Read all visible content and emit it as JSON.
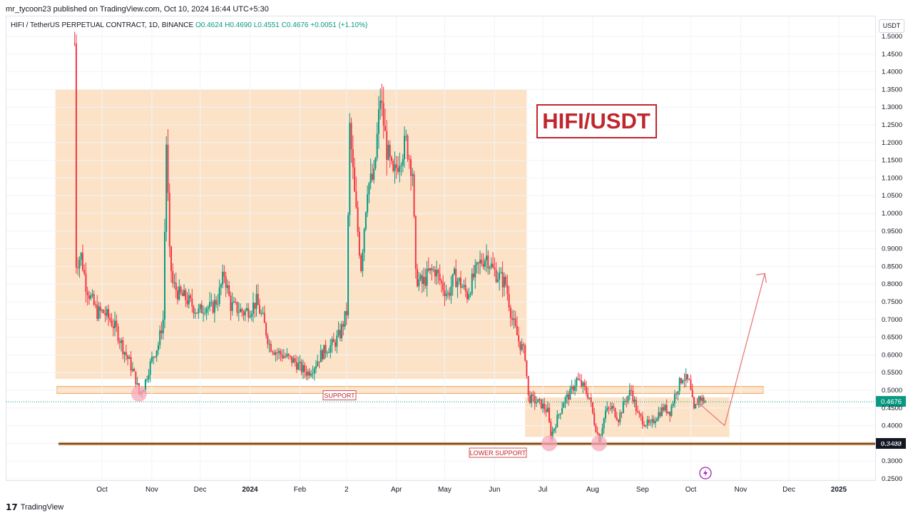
{
  "header": {
    "published": "mr_tycoon23 published on TradingView.com, Oct 10, 2024 16:44 UTC+5:30"
  },
  "symbol": {
    "name": "HIFI / TetherUS PERPETUAL CONTRACT, 1D, BINANCE",
    "open": "O0.4624",
    "high": "H0.4690",
    "low": "L0.4551",
    "close": "C0.4676",
    "change": "+0.0051 (+1.10%)"
  },
  "currency_button": "USDT",
  "brand": {
    "logo": "17",
    "name": "TradingView"
  },
  "colors": {
    "up": "#089981",
    "down": "#f23645",
    "zone_fill": "#fbd9b4",
    "title_red": "#c0272d",
    "arrow": "#e87b7b",
    "circle": "#f7a8b8"
  },
  "annotations": {
    "title_box": "HIFI/USDT",
    "support_label": "SUPPORT",
    "lower_support_label": "LOWER SUPPORT",
    "current_price_tag": "0.4676",
    "lower_support_tag": "0.3488",
    "lightning_icon": "lightning-icon"
  },
  "chart_data": {
    "type": "candlestick",
    "title": "HIFI/USDT",
    "y_ticks": [
      "1.5000",
      "1.4500",
      "1.4000",
      "1.3500",
      "1.3000",
      "1.2500",
      "1.2000",
      "1.1500",
      "1.1000",
      "1.0500",
      "1.0000",
      "0.9500",
      "0.9000",
      "0.8500",
      "0.8000",
      "0.7500",
      "0.7000",
      "0.6500",
      "0.6000",
      "0.5500",
      "0.5000",
      "0.4500",
      "0.4000",
      "0.3500",
      "0.3000",
      "0.2500"
    ],
    "x_ticks": [
      "Oct",
      "Nov",
      "Dec",
      "2024",
      "Feb",
      "2",
      "Apr",
      "May",
      "Jun",
      "Jul",
      "Aug",
      "Sep",
      "Oct",
      "Nov",
      "Dec",
      "2025"
    ],
    "x_tick_dates": [
      "2023-10-01",
      "2023-11-01",
      "2023-12-01",
      "2024-01-01",
      "2024-02-01",
      "2024-03-01",
      "2024-04-01",
      "2024-05-01",
      "2024-06-01",
      "2024-07-01",
      "2024-08-01",
      "2024-09-01",
      "2024-10-01",
      "2024-11-01",
      "2024-12-01",
      "2025-01-01"
    ],
    "ylim": [
      0.24,
      1.52
    ],
    "current_price": 0.4676,
    "lower_support_price": 0.3488,
    "close_path": [
      [
        "2023-09-14",
        1.48
      ],
      [
        "2023-09-15",
        0.86
      ],
      [
        "2023-09-18",
        0.88
      ],
      [
        "2023-09-21",
        0.8
      ],
      [
        "2023-09-24",
        0.76
      ],
      [
        "2023-09-28",
        0.72
      ],
      [
        "2023-10-02",
        0.72
      ],
      [
        "2023-10-06",
        0.7
      ],
      [
        "2023-10-10",
        0.67
      ],
      [
        "2023-10-14",
        0.62
      ],
      [
        "2023-10-18",
        0.58
      ],
      [
        "2023-10-22",
        0.53
      ],
      [
        "2023-10-24",
        0.49
      ],
      [
        "2023-10-27",
        0.51
      ],
      [
        "2023-10-30",
        0.56
      ],
      [
        "2023-11-02",
        0.6
      ],
      [
        "2023-11-05",
        0.63
      ],
      [
        "2023-11-08",
        0.7
      ],
      [
        "2023-11-10",
        1.2
      ],
      [
        "2023-11-12",
        0.88
      ],
      [
        "2023-11-14",
        0.8
      ],
      [
        "2023-11-18",
        0.77
      ],
      [
        "2023-11-22",
        0.76
      ],
      [
        "2023-11-26",
        0.74
      ],
      [
        "2023-11-30",
        0.72
      ],
      [
        "2023-12-04",
        0.74
      ],
      [
        "2023-12-08",
        0.73
      ],
      [
        "2023-12-12",
        0.76
      ],
      [
        "2023-12-16",
        0.83
      ],
      [
        "2023-12-20",
        0.74
      ],
      [
        "2023-12-24",
        0.73
      ],
      [
        "2023-12-28",
        0.72
      ],
      [
        "2024-01-01",
        0.73
      ],
      [
        "2024-01-05",
        0.75
      ],
      [
        "2024-01-09",
        0.7
      ],
      [
        "2024-01-13",
        0.63
      ],
      [
        "2024-01-17",
        0.61
      ],
      [
        "2024-01-21",
        0.6
      ],
      [
        "2024-01-25",
        0.59
      ],
      [
        "2024-01-29",
        0.58
      ],
      [
        "2024-02-02",
        0.56
      ],
      [
        "2024-02-06",
        0.55
      ],
      [
        "2024-02-10",
        0.57
      ],
      [
        "2024-02-14",
        0.6
      ],
      [
        "2024-02-18",
        0.62
      ],
      [
        "2024-02-22",
        0.63
      ],
      [
        "2024-02-26",
        0.66
      ],
      [
        "2024-03-01",
        0.72
      ],
      [
        "2024-03-03",
        1.24
      ],
      [
        "2024-03-06",
        1.05
      ],
      [
        "2024-03-10",
        0.85
      ],
      [
        "2024-03-14",
        1.08
      ],
      [
        "2024-03-18",
        1.1
      ],
      [
        "2024-03-22",
        1.33
      ],
      [
        "2024-03-26",
        1.18
      ],
      [
        "2024-03-30",
        1.1
      ],
      [
        "2024-04-03",
        1.16
      ],
      [
        "2024-04-07",
        1.2
      ],
      [
        "2024-04-11",
        1.12
      ],
      [
        "2024-04-13",
        0.82
      ],
      [
        "2024-04-17",
        0.8
      ],
      [
        "2024-04-21",
        0.83
      ],
      [
        "2024-04-25",
        0.84
      ],
      [
        "2024-04-29",
        0.8
      ],
      [
        "2024-05-03",
        0.77
      ],
      [
        "2024-05-07",
        0.82
      ],
      [
        "2024-05-11",
        0.8
      ],
      [
        "2024-05-15",
        0.77
      ],
      [
        "2024-05-19",
        0.82
      ],
      [
        "2024-05-23",
        0.86
      ],
      [
        "2024-05-27",
        0.88
      ],
      [
        "2024-05-31",
        0.84
      ],
      [
        "2024-06-04",
        0.82
      ],
      [
        "2024-06-08",
        0.8
      ],
      [
        "2024-06-12",
        0.7
      ],
      [
        "2024-06-16",
        0.64
      ],
      [
        "2024-06-20",
        0.6
      ],
      [
        "2024-06-22",
        0.48
      ],
      [
        "2024-06-26",
        0.47
      ],
      [
        "2024-06-30",
        0.46
      ],
      [
        "2024-07-04",
        0.44
      ],
      [
        "2024-07-06",
        0.37
      ],
      [
        "2024-07-10",
        0.42
      ],
      [
        "2024-07-14",
        0.47
      ],
      [
        "2024-07-18",
        0.49
      ],
      [
        "2024-07-22",
        0.53
      ],
      [
        "2024-07-26",
        0.51
      ],
      [
        "2024-07-30",
        0.48
      ],
      [
        "2024-08-02",
        0.41
      ],
      [
        "2024-08-05",
        0.36
      ],
      [
        "2024-08-09",
        0.44
      ],
      [
        "2024-08-13",
        0.45
      ],
      [
        "2024-08-17",
        0.42
      ],
      [
        "2024-08-21",
        0.47
      ],
      [
        "2024-08-25",
        0.5
      ],
      [
        "2024-08-29",
        0.43
      ],
      [
        "2024-09-02",
        0.41
      ],
      [
        "2024-09-06",
        0.4
      ],
      [
        "2024-09-10",
        0.43
      ],
      [
        "2024-09-14",
        0.45
      ],
      [
        "2024-09-18",
        0.44
      ],
      [
        "2024-09-22",
        0.5
      ],
      [
        "2024-09-26",
        0.54
      ],
      [
        "2024-09-30",
        0.52
      ],
      [
        "2024-10-03",
        0.44
      ],
      [
        "2024-10-06",
        0.48
      ],
      [
        "2024-10-10",
        0.4676
      ]
    ],
    "zones": [
      {
        "name": "upper-range",
        "from": "2023-09-02",
        "to": "2024-06-21",
        "low": 0.532,
        "high": 1.35
      },
      {
        "name": "support",
        "from": "2023-09-03",
        "to": "2024-11-15",
        "low": 0.491,
        "high": 0.511
      },
      {
        "name": "lower-range",
        "from": "2024-06-20",
        "to": "2024-10-25",
        "low": 0.368,
        "high": 0.48
      }
    ],
    "projection": [
      [
        "2024-10-05",
        0.4676
      ],
      [
        "2024-10-22",
        0.4
      ],
      [
        "2024-11-16",
        0.83
      ]
    ]
  }
}
